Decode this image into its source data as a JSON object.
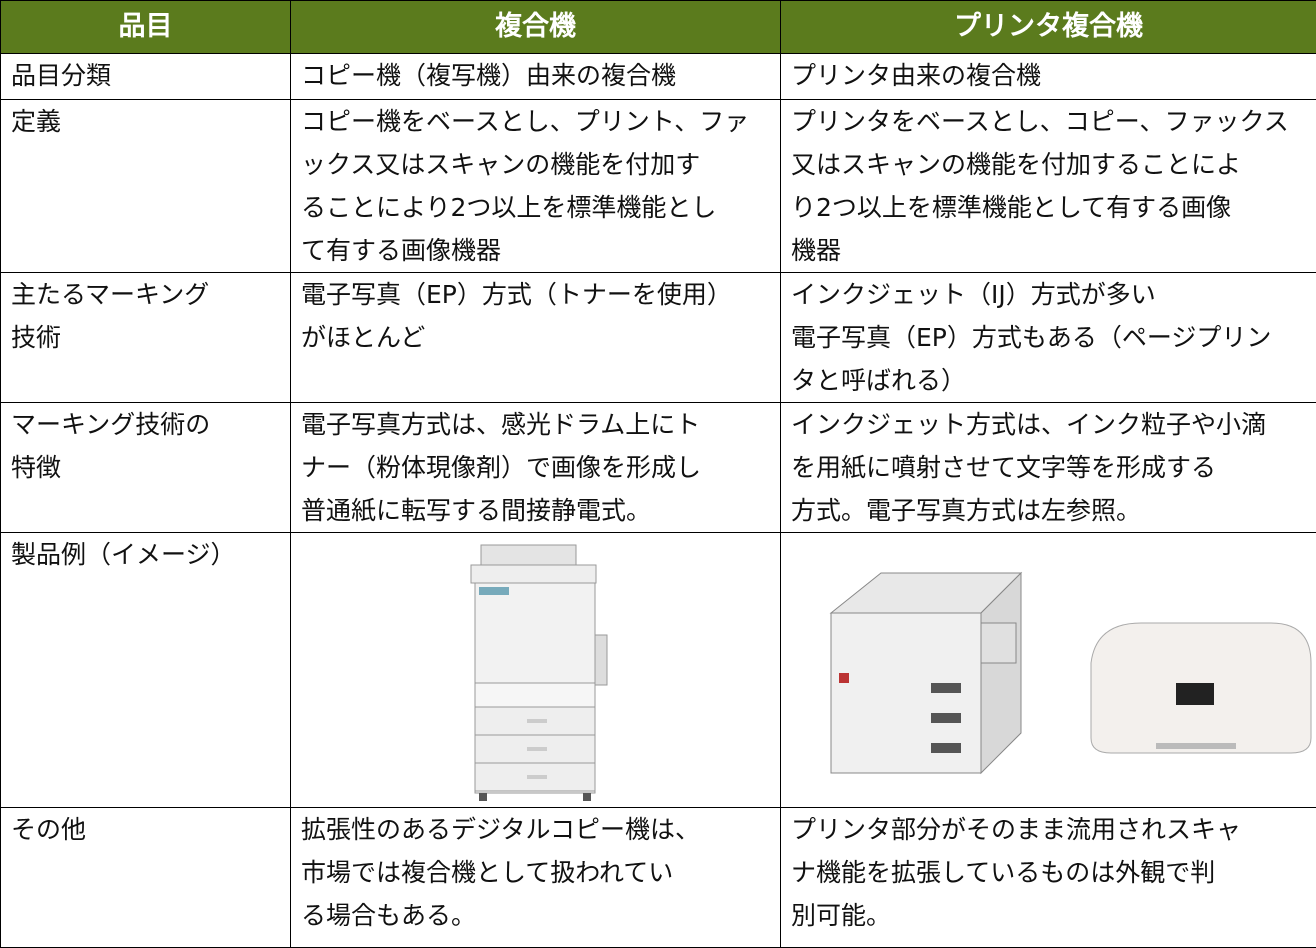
{
  "table": {
    "header": [
      "品目",
      "複合機",
      "プリンタ複合機"
    ],
    "rows": [
      [
        [
          "品目分類"
        ],
        [
          "コピー機（複写機）由来の複合機"
        ],
        [
          "プリンタ由来の複合機"
        ]
      ],
      [
        [
          "定義"
        ],
        [
          "コピー機をベースとし、プリント、ファ",
          "ックス又はスキャンの機能を付加す",
          "ることにより2つ以上を標準機能とし",
          "て有する画像機器"
        ],
        [
          "プリンタをベースとし、コピー、ファックス",
          "又はスキャンの機能を付加することによ",
          "り2つ以上を標準機能として有する画像",
          "機器"
        ]
      ],
      [
        [
          "主たるマーキング",
          "技術"
        ],
        [
          "電子写真（EP）方式（トナーを使用）",
          "がほとんど"
        ],
        [
          "インクジェット（IJ）方式が多い",
          "電子写真（EP）方式もある（ページプリン",
          "タと呼ばれる）"
        ]
      ],
      [
        [
          "マーキング技術の",
          "特徴"
        ],
        [
          "電子写真方式は、感光ドラム上にト",
          "ナー（粉体現像剤）で画像を形成し",
          "普通紙に転写する間接静電式。"
        ],
        [
          "インクジェット方式は、インク粒子や小滴",
          "を用紙に噴射させて文字等を形成する",
          "方式。電子写真方式は左参照。"
        ]
      ],
      [
        [
          "製品例（イメージ）"
        ]
      ],
      [
        [
          "その他"
        ],
        [
          "拡張性のあるデジタルコピー機は、",
          "市場では複合機として扱われてい",
          "る場合もある。"
        ],
        [
          "プリンタ部分がそのまま流用されスキャ",
          "ナ機能を拡張しているものは外観で判",
          "別可能。"
        ]
      ]
    ]
  }
}
